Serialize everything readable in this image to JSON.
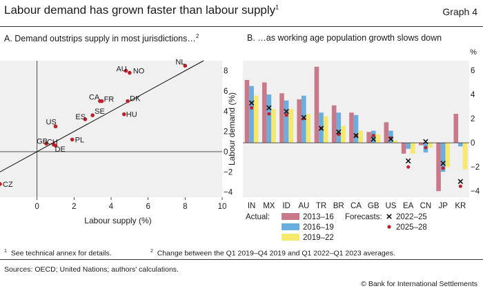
{
  "header": {
    "title": "Labour demand has grown faster than labour supply",
    "title_sup": "1",
    "graph_label": "Graph 4"
  },
  "panel_a": {
    "subtitle": "A. Demand outstrips supply in most jurisdictions…",
    "subtitle_sup": "2"
  },
  "panel_b": {
    "subtitle": "B. …as working age population growth slows down",
    "unit": "%"
  },
  "footnotes": {
    "fn1_mark": "1",
    "fn1_text": "See technical annex for details.",
    "fn2_mark": "2",
    "fn2_text": "Change between the Q1 2019–Q4 2019 and Q1 2022–Q1 2023 averages.",
    "sources": "Sources: OECD; United Nations; authors' calculations.",
    "copyright": "© Bank for International Settlements"
  },
  "colors": {
    "panel_bg": "#f0f0f0",
    "bar_2013_16": "#c97a8a",
    "bar_2016_19": "#6aaee0",
    "bar_2019_22": "#f6e86c",
    "dot": "#c0202a",
    "cross": "#111111",
    "line": "#111111"
  },
  "chart_data": [
    {
      "type": "scatter",
      "xlabel": "Labour supply (%)",
      "ylabel": "",
      "xlim": [
        -2,
        10
      ],
      "ylim": [
        -4.5,
        9
      ],
      "xticks": [
        0,
        2,
        4,
        6,
        8,
        10
      ],
      "yticks": [
        8,
        6,
        4,
        2,
        0,
        -2,
        -4
      ],
      "ytick_labels": [
        "8",
        "6",
        "4",
        "2",
        "0",
        "−2",
        "−4"
      ],
      "grid": false,
      "reference_line": "45-degree line",
      "points": [
        {
          "label": "AU",
          "x": 4.8,
          "y": 8.0
        },
        {
          "label": "NO",
          "x": 5.0,
          "y": 7.8
        },
        {
          "label": "NL",
          "x": 8.0,
          "y": 8.5
        },
        {
          "label": "CA",
          "x": 3.4,
          "y": 5.0
        },
        {
          "label": "FR",
          "x": 3.5,
          "y": 5.0
        },
        {
          "label": "DK",
          "x": 4.9,
          "y": 5.0
        },
        {
          "label": "SE",
          "x": 3.0,
          "y": 3.6
        },
        {
          "label": "ES",
          "x": 2.6,
          "y": 3.2
        },
        {
          "label": "HU",
          "x": 4.7,
          "y": 3.7
        },
        {
          "label": "US",
          "x": 1.0,
          "y": 2.5
        },
        {
          "label": "GB",
          "x": 0.5,
          "y": 0.8
        },
        {
          "label": "CH",
          "x": 0.9,
          "y": 0.7
        },
        {
          "label": "DE",
          "x": 1.0,
          "y": 0.6
        },
        {
          "label": "PL",
          "x": 1.9,
          "y": 1.2
        },
        {
          "label": "CZ",
          "x": -2.0,
          "y": -3.2
        }
      ]
    },
    {
      "type": "bar",
      "ylabel": "Labour demand (%)",
      "ylim": [
        -4.5,
        6.8
      ],
      "yticks": [
        6,
        4,
        2,
        0,
        -2,
        -4
      ],
      "ytick_labels": [
        "6",
        "4",
        "2",
        "0",
        "−2",
        "−4"
      ],
      "unit": "%",
      "categories": [
        "IN",
        "MX",
        "ID",
        "AU",
        "TR",
        "BR",
        "CA",
        "GB",
        "US",
        "EA",
        "CN",
        "JP",
        "KR"
      ],
      "series": [
        {
          "name": "2013–16",
          "group": "Actual:",
          "values": [
            5.2,
            5.0,
            4.1,
            3.6,
            6.3,
            3.1,
            2.5,
            0.9,
            1.7,
            -0.9,
            -0.2,
            -4.0,
            2.4
          ]
        },
        {
          "name": "2016–19",
          "group": "Actual:",
          "values": [
            4.7,
            4.0,
            3.5,
            3.9,
            2.5,
            2.5,
            2.3,
            1.0,
            1.0,
            -0.5,
            -0.8,
            -2.4,
            -0.3
          ]
        },
        {
          "name": "2019–22",
          "group": "Actual:",
          "values": [
            3.9,
            2.8,
            2.8,
            2.4,
            2.2,
            1.4,
            1.0,
            0.7,
            0.2,
            -0.9,
            -0.4,
            -2.0,
            -2.2
          ]
        }
      ],
      "forecasts": [
        {
          "name": "2022–25",
          "group": "Forecasts:",
          "marker": "cross",
          "values": [
            3.3,
            2.9,
            2.6,
            2.1,
            1.2,
            0.9,
            0.6,
            0.3,
            0.3,
            -1.5,
            0.1,
            -1.7,
            -3.2
          ]
        },
        {
          "name": "2025–28",
          "group": "Forecasts:",
          "marker": "dot",
          "values": [
            2.9,
            2.4,
            2.3,
            2.0,
            1.2,
            0.7,
            0.6,
            0.6,
            0.4,
            -2.0,
            -0.4,
            -2.1,
            -3.6
          ]
        }
      ],
      "legend_placement": "bottom"
    }
  ]
}
